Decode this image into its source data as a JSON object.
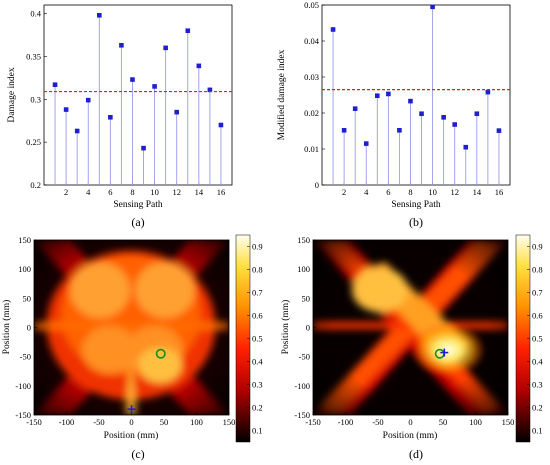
{
  "chart_data": [
    {
      "type": "stem",
      "panel": "(a)",
      "xlabel": "Sensing Path",
      "ylabel": "Damage index",
      "xlim": [
        0,
        17
      ],
      "ylim": [
        0.2,
        0.41
      ],
      "xticks": [
        "2",
        "4",
        "6",
        "8",
        "10",
        "12",
        "14",
        "16"
      ],
      "yticks": [
        "0.2",
        "0.25",
        "0.3",
        "0.35",
        "0.4"
      ],
      "x": [
        1,
        2,
        3,
        4,
        5,
        6,
        7,
        8,
        9,
        10,
        11,
        12,
        13,
        14,
        15,
        16
      ],
      "values": [
        0.317,
        0.288,
        0.263,
        0.299,
        0.398,
        0.279,
        0.363,
        0.323,
        0.243,
        0.315,
        0.36,
        0.285,
        0.38,
        0.339,
        0.311,
        0.27
      ],
      "threshold": 0.309,
      "colors": {
        "marker": "#1f1fd0",
        "stem": "#9b9be8",
        "threshold": "#e02020"
      }
    },
    {
      "type": "stem",
      "panel": "(b)",
      "xlabel": "Sensing Path",
      "ylabel": "Modified damage index",
      "xlim": [
        0,
        17
      ],
      "ylim": [
        0,
        0.05
      ],
      "xticks": [
        "2",
        "4",
        "6",
        "8",
        "10",
        "12",
        "14",
        "16"
      ],
      "yticks": [
        "0",
        "0.01",
        "0.02",
        "0.03",
        "0.04",
        "0.05"
      ],
      "x": [
        1,
        2,
        3,
        4,
        5,
        6,
        7,
        8,
        9,
        10,
        11,
        12,
        13,
        14,
        15,
        16
      ],
      "values": [
        0.0432,
        0.0152,
        0.0212,
        0.0115,
        0.0248,
        0.0253,
        0.0152,
        0.0233,
        0.0198,
        0.0495,
        0.0188,
        0.0168,
        0.0105,
        0.0198,
        0.0258,
        0.0151
      ],
      "threshold": 0.0265,
      "colors": {
        "marker": "#1f1fd0",
        "stem": "#9b9be8",
        "threshold": "#e02020"
      }
    },
    {
      "type": "heatmap",
      "panel": "(c)",
      "xlabel": "Position (mm)",
      "ylabel": "Position (mm)",
      "xlim": [
        -150,
        150
      ],
      "ylim": [
        -150,
        150
      ],
      "xticks": [
        "-150",
        "-100",
        "-50",
        "0",
        "50",
        "100",
        "150"
      ],
      "yticks": [
        "-150",
        "-100",
        "-50",
        "0",
        "50",
        "100",
        "150"
      ],
      "colorbar_ticks": [
        "0.1",
        "0.2",
        "0.3",
        "0.4",
        "0.5",
        "0.6",
        "0.7",
        "0.8",
        "0.9"
      ],
      "colorbar_range": [
        0.05,
        0.95
      ],
      "actual_damage": {
        "x": 45,
        "y": -45
      },
      "predicted_damage": {
        "x": 0,
        "y": -140
      }
    },
    {
      "type": "heatmap",
      "panel": "(d)",
      "xlabel": "Position (mm)",
      "ylabel": "Position (mm)",
      "xlim": [
        -150,
        150
      ],
      "ylim": [
        -150,
        150
      ],
      "xticks": [
        "-150",
        "-100",
        "-50",
        "0",
        "50",
        "100",
        "150"
      ],
      "yticks": [
        "-150",
        "-100",
        "-50",
        "0",
        "50",
        "100",
        "150"
      ],
      "colorbar_ticks": [
        "0.1",
        "0.2",
        "0.3",
        "0.4",
        "0.5",
        "0.6",
        "0.7",
        "0.8",
        "0.9"
      ],
      "colorbar_range": [
        0.05,
        0.95
      ],
      "actual_damage": {
        "x": 45,
        "y": -45
      },
      "predicted_damage": {
        "x": 52,
        "y": -43
      }
    }
  ]
}
